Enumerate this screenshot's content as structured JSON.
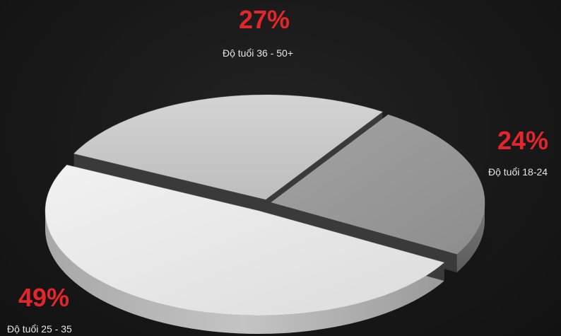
{
  "chart_data": {
    "type": "pie",
    "style": "3d-exploded",
    "slices": [
      {
        "label": "Độ tuổi 36 - 50+",
        "value": 27,
        "percent_label": "27%"
      },
      {
        "label": "Độ tuổi 18-24",
        "value": 24,
        "percent_label": "24%"
      },
      {
        "label": "Độ tuổi 25 - 35",
        "value": 49,
        "percent_label": "49%"
      }
    ],
    "slice_colors": [
      "#c9c9c9",
      "#9b9b9b",
      "#ececec"
    ],
    "percent_color": "#e3262b",
    "background": "#161616"
  }
}
